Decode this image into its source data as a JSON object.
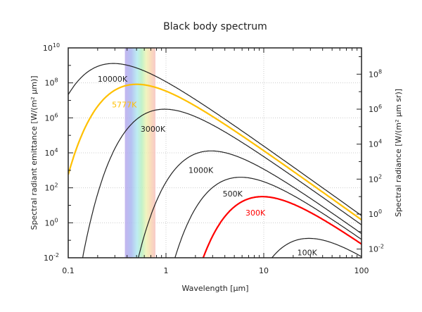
{
  "chart_data": {
    "type": "line",
    "title": "Black body spectrum",
    "xlabel": "Wavelength [μm]",
    "ylabel": "Spectral radiant emittance [W/(m² μm)]",
    "ylabel_right": "Spectral radiance [W/(m² μm sr)]",
    "x_scale": "log",
    "y_scale": "log",
    "xlim": [
      0.1,
      100
    ],
    "ylim": [
      0.01,
      10000000000.0
    ],
    "ylim_right": [
      0.00318,
      3180000000.0
    ],
    "grid": true,
    "x_ticks": [
      "0.1",
      "1",
      "10",
      "100"
    ],
    "y_ticks": [
      {
        "base": "10",
        "exp": "-2"
      },
      {
        "base": "10",
        "exp": "0"
      },
      {
        "base": "10",
        "exp": "2"
      },
      {
        "base": "10",
        "exp": "4"
      },
      {
        "base": "10",
        "exp": "6"
      },
      {
        "base": "10",
        "exp": "8"
      },
      {
        "base": "10",
        "exp": "10"
      }
    ],
    "y_ticks_right": [
      {
        "base": "10",
        "exp": "-2"
      },
      {
        "base": "10",
        "exp": "0"
      },
      {
        "base": "10",
        "exp": "2"
      },
      {
        "base": "10",
        "exp": "4"
      },
      {
        "base": "10",
        "exp": "6"
      },
      {
        "base": "10",
        "exp": "8"
      }
    ],
    "visible_band_um": [
      0.38,
      0.78
    ],
    "series": [
      {
        "name": "10000K",
        "temperature_K": 10000,
        "color": "#222222",
        "label_at_um": 0.2
      },
      {
        "name": "5777K",
        "temperature_K": 5777,
        "color": "#ffc000",
        "label_at_um": 0.28
      },
      {
        "name": "3000K",
        "temperature_K": 3000,
        "color": "#222222",
        "label_at_um": 0.55
      },
      {
        "name": "1000K",
        "temperature_K": 1000,
        "color": "#222222",
        "label_at_um": 1.7
      },
      {
        "name": "500K",
        "temperature_K": 500,
        "color": "#222222",
        "label_at_um": 3.8
      },
      {
        "name": "300K",
        "temperature_K": 300,
        "color": "#ff0000",
        "label_at_um": 6.5
      },
      {
        "name": "100K",
        "temperature_K": 100,
        "color": "#222222",
        "label_at_um": 22
      }
    ]
  }
}
